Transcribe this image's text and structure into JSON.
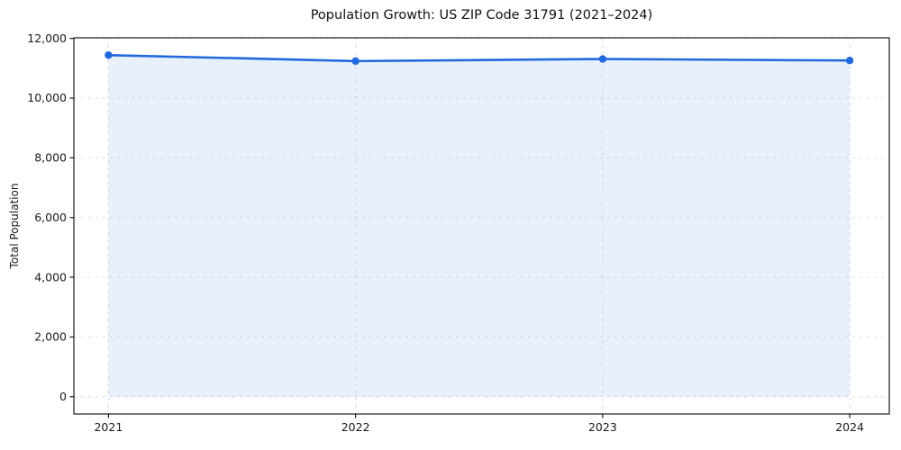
{
  "chart_data": {
    "type": "line",
    "title": "Population Growth: US ZIP Code 31791 (2021–2024)",
    "xlabel": "",
    "ylabel": "Total Population",
    "x": [
      2021,
      2022,
      2023,
      2024
    ],
    "series": [
      {
        "name": "Total Population",
        "values": [
          11440,
          11240,
          11310,
          11260
        ]
      }
    ],
    "area_fill": true,
    "area_baseline": 0,
    "xlim": [
      2020.86,
      2024.16
    ],
    "ylim": [
      -580,
      12020
    ],
    "xticks": [
      2021,
      2022,
      2023,
      2024
    ],
    "xtick_labels": [
      "2021",
      "2022",
      "2023",
      "2024"
    ],
    "yticks": [
      0,
      2000,
      4000,
      6000,
      8000,
      10000,
      12000
    ],
    "ytick_labels": [
      "0",
      "2,000",
      "4,000",
      "6,000",
      "8,000",
      "10,000",
      "12,000"
    ],
    "grid": true,
    "grid_style": "dashed",
    "legend": "none",
    "marker": "circle",
    "colors": {
      "line": "#2269dd",
      "marker": "#2269dd",
      "fill": "#2269dd",
      "fill_opacity": 0.1,
      "grid": "#d8d8d8",
      "spine": "#1a1a1a",
      "text": "#1a1a1a",
      "background": "#ffffff"
    }
  }
}
